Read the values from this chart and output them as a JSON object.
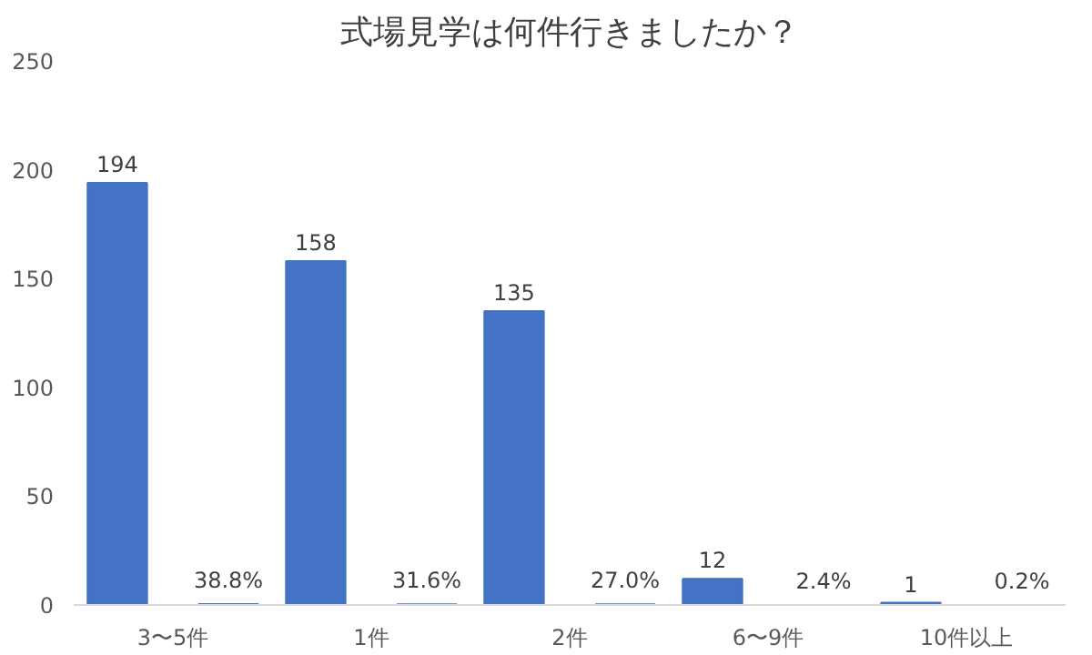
{
  "chart_data": {
    "type": "bar",
    "title": "式場見学は何件行きましたか？",
    "categories": [
      "3〜5件",
      "1件",
      "2件",
      "6〜9件",
      "10件以上"
    ],
    "series": [
      {
        "color": "#4472c4",
        "values": [
          194,
          158,
          135,
          12,
          1
        ],
        "value_labels": [
          "194",
          "158",
          "135",
          "12",
          "1"
        ]
      },
      {
        "color": "#4472c4",
        "values": [
          0.388,
          0.316,
          0.27,
          0.024,
          0.002
        ],
        "value_labels": [
          "38.8%",
          "31.6%",
          "27.0%",
          "2.4%",
          "0.2%"
        ]
      }
    ],
    "ylim": [
      0,
      250
    ],
    "yticks": [
      0,
      50,
      100,
      150,
      200,
      250
    ],
    "grid": false
  }
}
